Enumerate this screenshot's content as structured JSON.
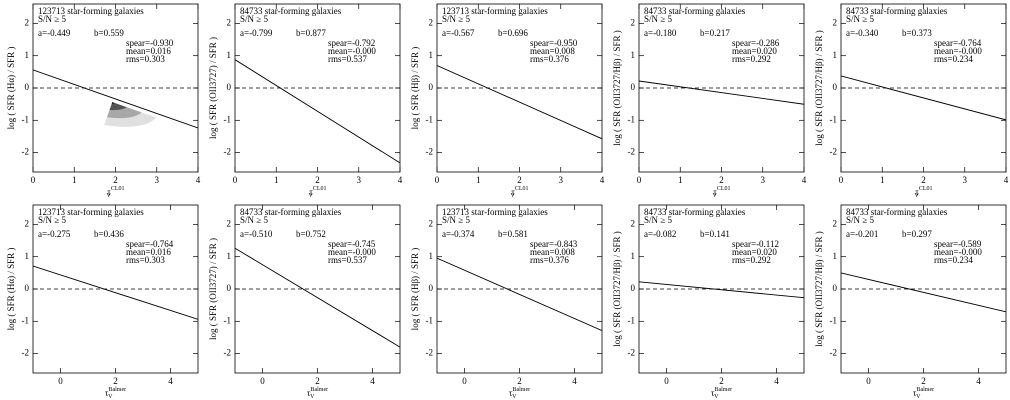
{
  "chart_data": [
    {
      "type": "scatter",
      "count_label": "123713 star-forming galaxies",
      "sn_label": "S/N ≥ 5",
      "y_label": "log ( SFR (Hα) / SFR )",
      "x_label": {
        "symbol": "τ",
        "sub": "V",
        "sup": "CL01"
      },
      "fit": {
        "values": [
          -0.449,
          0.559
        ],
        "value_labels": [
          "a=-0.449",
          "b=0.559"
        ]
      },
      "spear": "spear=-0.930",
      "mean": "mean=0.016",
      "rms": "rms=0.303",
      "xlim": [
        0,
        4
      ],
      "xticks": [
        0,
        1,
        2,
        3,
        4
      ],
      "ylim": [
        -2.6,
        2.6
      ],
      "yticks": [
        -2,
        -1,
        0,
        1,
        2
      ]
    },
    {
      "type": "scatter",
      "count_label": "84733 star-forming galaxies",
      "sn_label": "S/N ≥ 5",
      "y_label": "log ( SFR (OII3727) / SFR )",
      "x_label": {
        "symbol": "τ",
        "sub": "V",
        "sup": "CL01"
      },
      "fit": {
        "values": [
          -0.799,
          0.877
        ],
        "value_labels": [
          "a=-0.799",
          "b=0.877"
        ]
      },
      "spear": "spear=-0.792",
      "mean": "mean=-0.000",
      "rms": "rms=0.537",
      "xlim": [
        0,
        4
      ],
      "xticks": [
        0,
        1,
        2,
        3,
        4
      ],
      "ylim": [
        -2.6,
        2.6
      ],
      "yticks": [
        -2,
        -1,
        0,
        1,
        2
      ]
    },
    {
      "type": "scatter",
      "count_label": "123713 star-forming galaxies",
      "sn_label": "S/N ≥ 5",
      "y_label": "log ( SFR (Hβ) / SFR )",
      "x_label": {
        "symbol": "τ",
        "sub": "V",
        "sup": "CL01"
      },
      "fit": {
        "values": [
          -0.567,
          0.696
        ],
        "value_labels": [
          "a=-0.567",
          "b=0.696"
        ]
      },
      "spear": "spear=-0.950",
      "mean": "mean=0.008",
      "rms": "rms=0.376",
      "xlim": [
        0,
        4
      ],
      "xticks": [
        0,
        1,
        2,
        3,
        4
      ],
      "ylim": [
        -2.6,
        2.6
      ],
      "yticks": [
        -2,
        -1,
        0,
        1,
        2
      ]
    },
    {
      "type": "scatter",
      "count_label": "84733 star-forming galaxies",
      "sn_label": "S/N ≥ 5",
      "y_label": "log ( SFR (OII3727/Hβ) / SFR )",
      "x_label": {
        "symbol": "τ",
        "sub": "V",
        "sup": "CL01"
      },
      "fit": {
        "values": [
          -0.18,
          0.217
        ],
        "value_labels": [
          "a=-0.180",
          "b=0.217"
        ]
      },
      "spear": "spear=-0.286",
      "mean": "mean=0.020",
      "rms": "rms=0.292",
      "xlim": [
        0,
        4
      ],
      "xticks": [
        0,
        1,
        2,
        3,
        4
      ],
      "ylim": [
        -2.6,
        2.6
      ],
      "yticks": [
        -2,
        -1,
        0,
        1,
        2
      ]
    },
    {
      "type": "scatter",
      "count_label": "84733 star-forming galaxies",
      "sn_label": "S/N ≥ 5",
      "y_label": "log ( SFR (OII3727/Hβ) / SFR )",
      "x_label": {
        "symbol": "τ",
        "sub": "V",
        "sup": "CL01"
      },
      "fit": {
        "values": [
          -0.34,
          0.373
        ],
        "value_labels": [
          "a=-0.340",
          "b=0.373"
        ]
      },
      "spear": "spear=-0.764",
      "mean": "mean=-0.000",
      "rms": "rms=0.234",
      "xlim": [
        0,
        4
      ],
      "xticks": [
        0,
        1,
        2,
        3,
        4
      ],
      "ylim": [
        -2.6,
        2.6
      ],
      "yticks": [
        -2,
        -1,
        0,
        1,
        2
      ]
    },
    {
      "type": "scatter",
      "count_label": "123713 star-forming galaxies",
      "sn_label": "S/N ≥ 5",
      "y_label": "log ( SFR (Hα) / SFR )",
      "x_label": {
        "symbol": "τ",
        "sub": "V",
        "sup": "Balmer"
      },
      "fit": {
        "values": [
          -0.275,
          0.436
        ],
        "value_labels": [
          "a=-0.275",
          "b=0.436"
        ]
      },
      "spear": "spear=-0.764",
      "mean": "mean=0.016",
      "rms": "rms=0.303",
      "xlim": [
        -1,
        5
      ],
      "xticks": [
        0,
        2,
        4
      ],
      "ylim": [
        -2.6,
        2.6
      ],
      "yticks": [
        -2,
        -1,
        0,
        1,
        2
      ]
    },
    {
      "type": "scatter",
      "count_label": "84733 star-forming galaxies",
      "sn_label": "S/N ≥ 5",
      "y_label": "log ( SFR (OII3727) / SFR )",
      "x_label": {
        "symbol": "τ",
        "sub": "V",
        "sup": "Balmer"
      },
      "fit": {
        "values": [
          -0.51,
          0.752
        ],
        "value_labels": [
          "a=-0.510",
          "b=0.752"
        ]
      },
      "spear": "spear=-0.745",
      "mean": "mean=-0.000",
      "rms": "rms=0.537",
      "xlim": [
        -1,
        5
      ],
      "xticks": [
        0,
        2,
        4
      ],
      "ylim": [
        -2.6,
        2.6
      ],
      "yticks": [
        -2,
        -1,
        0,
        1,
        2
      ]
    },
    {
      "type": "scatter",
      "count_label": "123713 star-forming galaxies",
      "sn_label": "S/N ≥ 5",
      "y_label": "log ( SFR (Hβ) / SFR )",
      "x_label": {
        "symbol": "τ",
        "sub": "V",
        "sup": "Balmer"
      },
      "fit": {
        "values": [
          -0.374,
          0.581
        ],
        "value_labels": [
          "a=-0.374",
          "b=0.581"
        ]
      },
      "spear": "spear=-0.843",
      "mean": "mean=0.008",
      "rms": "rms=0.376",
      "xlim": [
        -1,
        5
      ],
      "xticks": [
        0,
        2,
        4
      ],
      "ylim": [
        -2.6,
        2.6
      ],
      "yticks": [
        -2,
        -1,
        0,
        1,
        2
      ]
    },
    {
      "type": "scatter",
      "count_label": "84733 star-forming galaxies",
      "sn_label": "S/N ≥ 5",
      "y_label": "log ( SFR (OII3727/Hβ) / SFR )",
      "x_label": {
        "symbol": "τ",
        "sub": "V",
        "sup": "Balmer"
      },
      "fit": {
        "values": [
          -0.082,
          0.141
        ],
        "value_labels": [
          "a=-0.082",
          "b=0.141"
        ]
      },
      "spear": "spear=-0.112",
      "mean": "mean=0.020",
      "rms": "rms=0.292",
      "xlim": [
        -1,
        5
      ],
      "xticks": [
        0,
        2,
        4
      ],
      "ylim": [
        -2.6,
        2.6
      ],
      "yticks": [
        -2,
        -1,
        0,
        1,
        2
      ]
    },
    {
      "type": "scatter",
      "count_label": "84733 star-forming galaxies",
      "sn_label": "S/N ≥ 5",
      "y_label": "log ( SFR (OII3727/Hβ) / SFR )",
      "x_label": {
        "symbol": "τ",
        "sub": "V",
        "sup": "Balmer"
      },
      "fit": {
        "values": [
          -0.201,
          0.297
        ],
        "value_labels": [
          "a=-0.201",
          "b=0.297"
        ]
      },
      "spear": "spear=-0.589",
      "mean": "mean=-0.000",
      "rms": "rms=0.234",
      "xlim": [
        -1,
        5
      ],
      "xticks": [
        0,
        2,
        4
      ],
      "ylim": [
        -2.6,
        2.6
      ],
      "yticks": [
        -2,
        -1,
        0,
        1,
        2
      ]
    }
  ]
}
